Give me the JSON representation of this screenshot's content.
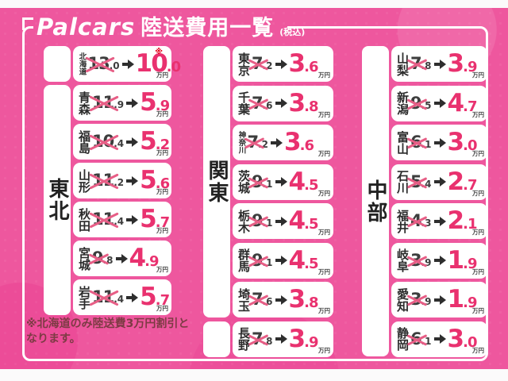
{
  "header": {
    "logo": "Palcars",
    "title": "陸送費用一覧",
    "tax_note": "(税込)"
  },
  "unit": "万円",
  "footnote": {
    "line1": "※北海道のみ陸送費3万円割引と",
    "line2": "なります。"
  },
  "colors": {
    "background_pink": "#ee579e",
    "price_pink": "#e9316f",
    "cross_pink": "#e75e86",
    "asterisk_red": "#e60019",
    "footnote_maroon": "#7d3b44"
  },
  "regions": [
    {
      "label": "東北",
      "rows": [
        {
          "pref": "北海道",
          "old_int": "13",
          "old_dec": ".0",
          "new_int": "10",
          "new_dec": ".0",
          "note": "※"
        },
        {
          "pref": "青森",
          "old_int": "11",
          "old_dec": ".9",
          "new_int": "5",
          "new_dec": ".9"
        },
        {
          "pref": "福島",
          "old_int": "10",
          "old_dec": ".4",
          "new_int": "5",
          "new_dec": ".2"
        },
        {
          "pref": "山形",
          "old_int": "11",
          "old_dec": ".2",
          "new_int": "5",
          "new_dec": ".6"
        },
        {
          "pref": "秋田",
          "old_int": "11",
          "old_dec": ".4",
          "new_int": "5",
          "new_dec": ".7"
        },
        {
          "pref": "宮城",
          "old_int": "9",
          "old_dec": ".8",
          "new_int": "4",
          "new_dec": ".9"
        },
        {
          "pref": "岩手",
          "old_int": "11",
          "old_dec": ".4",
          "new_int": "5",
          "new_dec": ".7"
        }
      ]
    },
    {
      "label": "関東",
      "rows": [
        {
          "pref": "東京",
          "old_int": "7",
          "old_dec": ".2",
          "new_int": "3",
          "new_dec": ".6"
        },
        {
          "pref": "千葉",
          "old_int": "7",
          "old_dec": ".6",
          "new_int": "3",
          "new_dec": ".8"
        },
        {
          "pref": "神奈川",
          "old_int": "7",
          "old_dec": ".2",
          "new_int": "3",
          "new_dec": ".6"
        },
        {
          "pref": "茨城",
          "old_int": "9",
          "old_dec": ".1",
          "new_int": "4",
          "new_dec": ".5"
        },
        {
          "pref": "栃木",
          "old_int": "9",
          "old_dec": ".1",
          "new_int": "4",
          "new_dec": ".5"
        },
        {
          "pref": "群馬",
          "old_int": "9",
          "old_dec": ".1",
          "new_int": "4",
          "new_dec": ".5"
        },
        {
          "pref": "埼玉",
          "old_int": "7",
          "old_dec": ".6",
          "new_int": "3",
          "new_dec": ".8"
        },
        {
          "pref": "長野",
          "old_int": "7",
          "old_dec": ".8",
          "new_int": "3",
          "new_dec": ".9"
        }
      ]
    },
    {
      "label": "中部",
      "rows": [
        {
          "pref": "山梨",
          "old_int": "7",
          "old_dec": ".8",
          "new_int": "3",
          "new_dec": ".9"
        },
        {
          "pref": "新潟",
          "old_int": "9",
          "old_dec": ".5",
          "new_int": "4",
          "new_dec": ".7"
        },
        {
          "pref": "富山",
          "old_int": "6",
          "old_dec": ".1",
          "new_int": "3",
          "new_dec": ".0"
        },
        {
          "pref": "石川",
          "old_int": "5",
          "old_dec": ".4",
          "new_int": "2",
          "new_dec": ".7"
        },
        {
          "pref": "福井",
          "old_int": "4",
          "old_dec": ".3",
          "new_int": "2",
          "new_dec": ".1"
        },
        {
          "pref": "岐阜",
          "old_int": "3",
          "old_dec": ".9",
          "new_int": "1",
          "new_dec": ".9"
        },
        {
          "pref": "愛知",
          "old_int": "3",
          "old_dec": ".9",
          "new_int": "1",
          "new_dec": ".9"
        },
        {
          "pref": "静岡",
          "old_int": "6",
          "old_dec": ".1",
          "new_int": "3",
          "new_dec": ".0"
        }
      ]
    }
  ]
}
